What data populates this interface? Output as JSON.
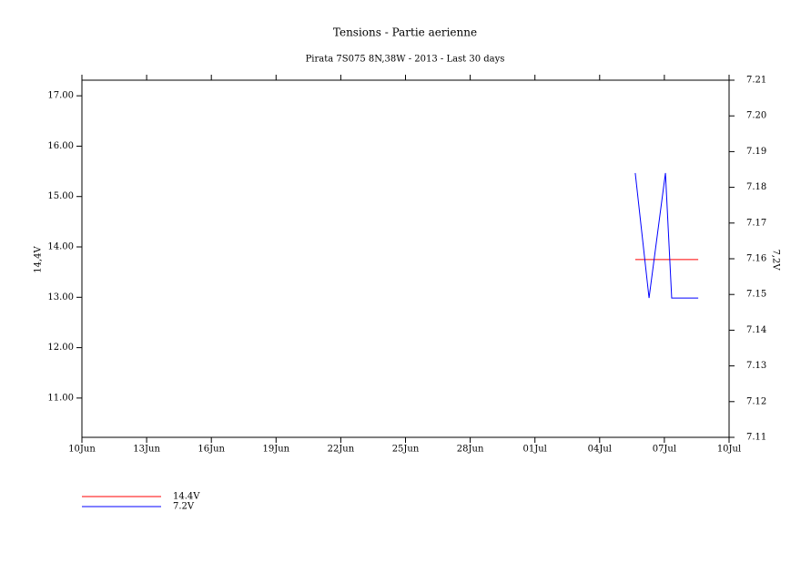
{
  "chart_data": {
    "type": "line",
    "title": "Tensions - Partie aerienne",
    "subtitle": "Pirata 7S075 8N,38W - 2013 - Last 30 days",
    "y_label": "14,4V",
    "y2_label": "7,2V",
    "xlim": [
      0,
      30
    ],
    "xticks": [
      {
        "value": 0,
        "label": "10Jun"
      },
      {
        "value": 3,
        "label": "13Jun"
      },
      {
        "value": 6,
        "label": "16Jun"
      },
      {
        "value": 9,
        "label": "19Jun"
      },
      {
        "value": 12,
        "label": "22Jun"
      },
      {
        "value": 15,
        "label": "25Jun"
      },
      {
        "value": 18,
        "label": "28Jun"
      },
      {
        "value": 21,
        "label": "01Jul"
      },
      {
        "value": 24,
        "label": "04Jul"
      },
      {
        "value": 27,
        "label": "07Jul"
      },
      {
        "value": 30,
        "label": "10Jul"
      }
    ],
    "ylim": [
      10.22,
      17.31
    ],
    "yticks": [
      {
        "value": 11,
        "label": "11.00"
      },
      {
        "value": 12,
        "label": "12.00"
      },
      {
        "value": 13,
        "label": "13.00"
      },
      {
        "value": 14,
        "label": "14.00"
      },
      {
        "value": 15,
        "label": "15.00"
      },
      {
        "value": 16,
        "label": "16.00"
      },
      {
        "value": 17,
        "label": "17.00"
      }
    ],
    "y2lim": [
      7.11,
      7.21
    ],
    "y2ticks": [
      7.11,
      7.12,
      7.13,
      7.14,
      7.15,
      7.16,
      7.17,
      7.18,
      7.19,
      {
        "value": 7.2,
        "label": "7.20"
      },
      7.21
    ],
    "x": [
      25.65,
      26.29,
      27.05,
      27.34,
      28.57
    ],
    "series": [
      {
        "name": "14.4V",
        "color": "#ff0000",
        "values": [
          13.75,
          13.75,
          13.75,
          13.75,
          13.75
        ]
      },
      {
        "name": "7.2V",
        "color": "#0000ff",
        "axis": "y2",
        "values": [
          7.184,
          7.149,
          7.184,
          7.149,
          7.149
        ]
      }
    ]
  }
}
